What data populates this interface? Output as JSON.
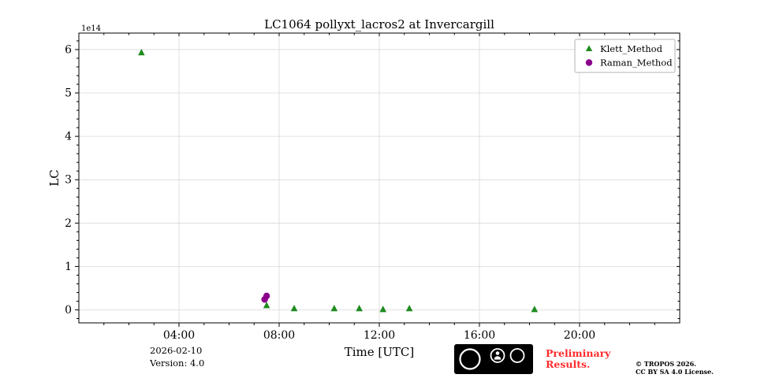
{
  "chart_data": {
    "type": "scatter",
    "title": "LC1064 pollyxt_lacros2 at Invercargill",
    "xlabel": "Time [UTC]",
    "ylabel": "LC",
    "y_scale_label": "1e14",
    "xlim": [
      0,
      24
    ],
    "ylim": [
      -0.3,
      6.38
    ],
    "grid": true,
    "legend_position": "upper right",
    "x_ticks": [
      {
        "h": 4,
        "label": "04:00"
      },
      {
        "h": 8,
        "label": "08:00"
      },
      {
        "h": 12,
        "label": "12:00"
      },
      {
        "h": 16,
        "label": "16:00"
      },
      {
        "h": 20,
        "label": "20:00"
      }
    ],
    "y_ticks": [
      {
        "v": 0,
        "label": "0"
      },
      {
        "v": 1,
        "label": "1"
      },
      {
        "v": 2,
        "label": "2"
      },
      {
        "v": 3,
        "label": "3"
      },
      {
        "v": 4,
        "label": "4"
      },
      {
        "v": 5,
        "label": "5"
      },
      {
        "v": 6,
        "label": "6"
      }
    ],
    "series": [
      {
        "name": "Klett_Method",
        "marker": "triangle",
        "color": "#1f8b1f",
        "points": [
          [
            2.5,
            5.93
          ],
          [
            7.5,
            0.1
          ],
          [
            8.6,
            0.03
          ],
          [
            10.2,
            0.03
          ],
          [
            11.2,
            0.03
          ],
          [
            12.15,
            0.01
          ],
          [
            13.2,
            0.03
          ],
          [
            18.2,
            0.01
          ]
        ]
      },
      {
        "name": "Raman_Method",
        "marker": "circle",
        "color": "#8b008b",
        "points": [
          [
            7.42,
            0.24
          ],
          [
            7.5,
            0.32
          ]
        ]
      }
    ]
  },
  "footer": {
    "date": "2026-02-10",
    "version": "Version: 4.0",
    "preliminary_line1": "Preliminary",
    "preliminary_line2": "Results.",
    "preliminary_color": "#ff2b2b",
    "copyright_line1": "© TROPOS 2026.",
    "copyright_line2": "CC BY SA 4.0 License.",
    "cc_badge": {
      "cc": "cc",
      "by": "BY",
      "sa": "SA"
    }
  }
}
